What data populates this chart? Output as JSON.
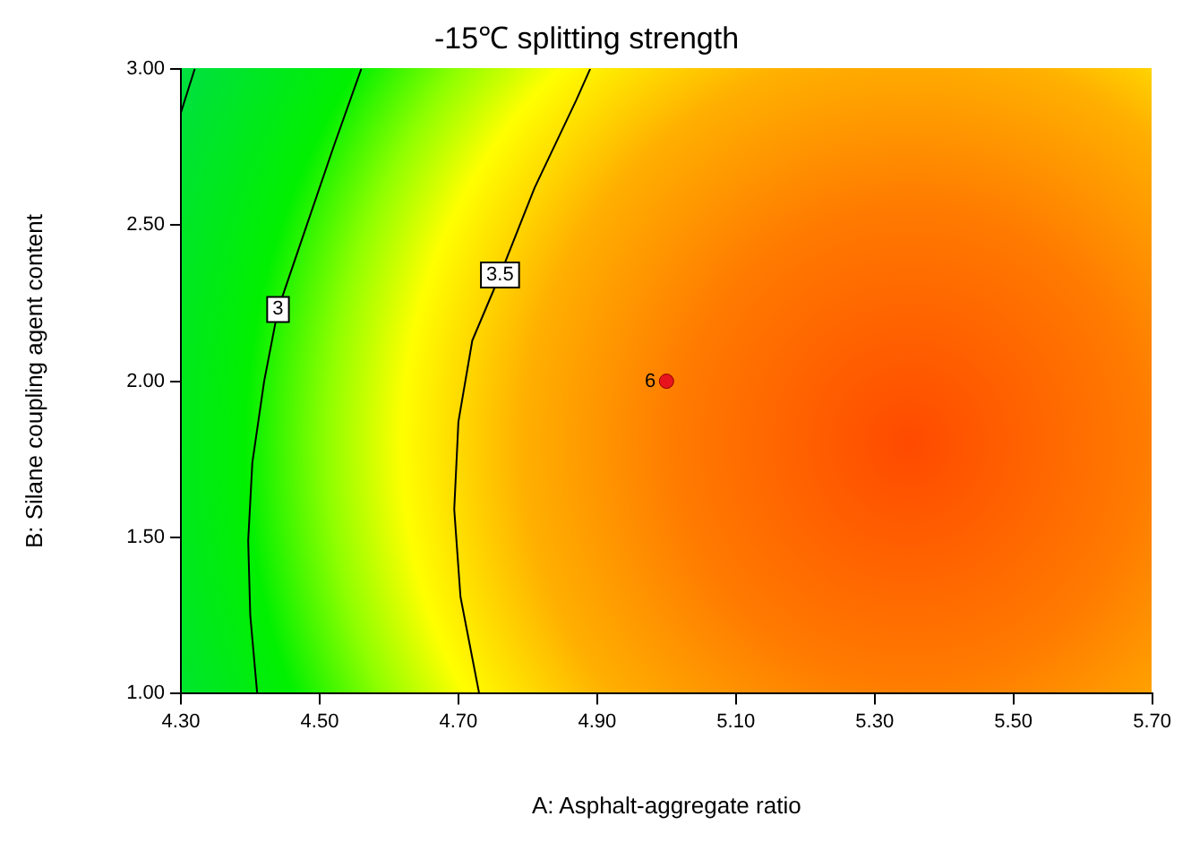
{
  "chart_data": {
    "type": "line",
    "title": "-15℃ splitting strength",
    "xlabel": "A: Asphalt-aggregate ratio",
    "ylabel": "B: Silane coupling agent content",
    "xlim": [
      4.3,
      5.7
    ],
    "xticks": [
      {
        "value": 4.3,
        "label": "4.30"
      },
      {
        "value": 4.5,
        "label": "4.50"
      },
      {
        "value": 4.7,
        "label": "4.70"
      },
      {
        "value": 4.9,
        "label": "4.90"
      },
      {
        "value": 5.1,
        "label": "5.10"
      },
      {
        "value": 5.3,
        "label": "5.30"
      },
      {
        "value": 5.5,
        "label": "5.50"
      },
      {
        "value": 5.7,
        "label": "5.70"
      }
    ],
    "ylim": [
      1,
      3
    ],
    "yticks": [
      {
        "value": 1,
        "label": "1.00"
      },
      {
        "value": 1.5,
        "label": "1.50"
      },
      {
        "value": 2,
        "label": "2.00"
      },
      {
        "value": 2.5,
        "label": "2.50"
      },
      {
        "value": 3,
        "label": "3.00"
      }
    ],
    "grid": false,
    "legend": false,
    "marker": "none",
    "line_style": "solid",
    "series": [
      {
        "name": "3",
        "color": "#000000",
        "x": [
          4.56,
          4.52,
          4.48,
          4.44,
          4.42,
          4.403,
          4.397,
          4.4,
          4.41
        ],
        "values": [
          3.0,
          2.75,
          2.49,
          2.23,
          2.0,
          1.74,
          1.49,
          1.25,
          1.0
        ]
      },
      {
        "name": "3.5",
        "color": "#000000",
        "x": [
          4.89,
          4.87,
          4.81,
          4.76,
          4.72,
          4.7,
          4.694,
          4.703,
          4.73
        ],
        "values": [
          3.0,
          2.9,
          2.62,
          2.34,
          2.13,
          1.87,
          1.59,
          1.31,
          1.0
        ]
      },
      {
        "color": "#000000",
        "x": [
          4.3,
          4.32
        ],
        "values": [
          2.86,
          3.0
        ]
      },
      {
        "type": "scatter",
        "marker": "circle",
        "color": "#e8141c",
        "x": [
          5.0
        ],
        "values": [
          2.0
        ]
      }
    ],
    "annotations": [
      {
        "text": "6",
        "x": 5.0,
        "y": 2.0
      }
    ]
  }
}
